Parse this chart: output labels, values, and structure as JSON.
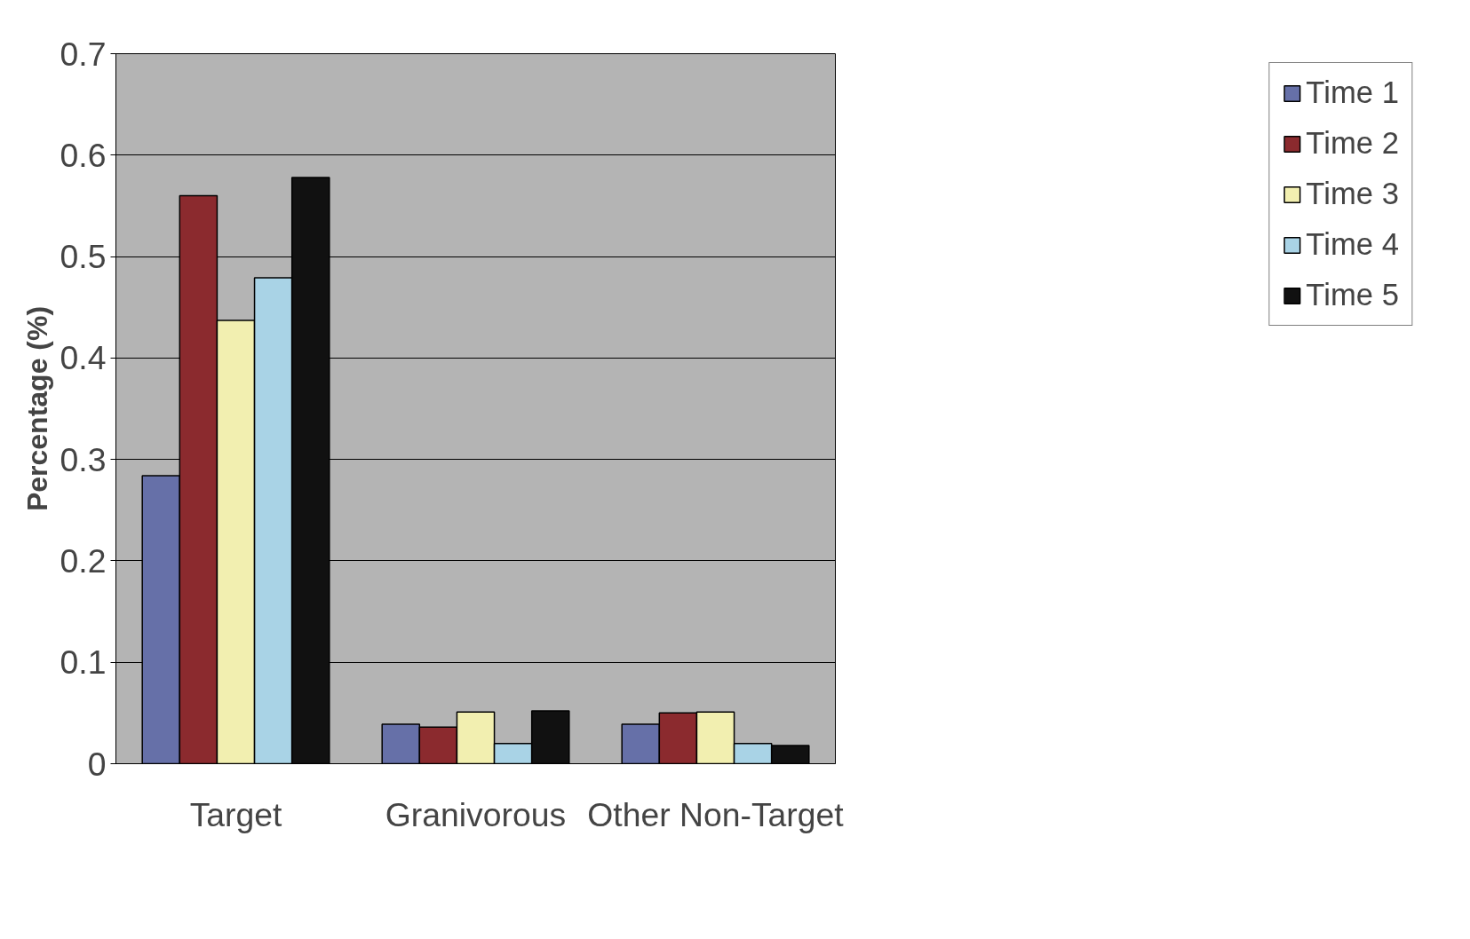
{
  "chart_data": {
    "type": "bar",
    "ylabel": "Percentage (%)",
    "categories": [
      "Target",
      "Granivorous",
      "Other Non-Target"
    ],
    "series": [
      {
        "name": "Time 1",
        "color": "#6670a8",
        "values": [
          0.284,
          0.039,
          0.039
        ]
      },
      {
        "name": "Time 2",
        "color": "#8b2a2e",
        "values": [
          0.56,
          0.036,
          0.05
        ]
      },
      {
        "name": "Time 3",
        "color": "#f2efb0",
        "values": [
          0.437,
          0.051,
          0.051
        ]
      },
      {
        "name": "Time 4",
        "color": "#a9d3e6",
        "values": [
          0.479,
          0.02,
          0.02
        ]
      },
      {
        "name": "Time 5",
        "color": "#111111",
        "values": [
          0.578,
          0.052,
          0.018
        ]
      }
    ],
    "ylim": [
      0,
      0.7
    ],
    "yticks": [
      0,
      0.1,
      0.2,
      0.3,
      0.4,
      0.5,
      0.6,
      0.7
    ],
    "grid": "y",
    "legend": "right"
  }
}
